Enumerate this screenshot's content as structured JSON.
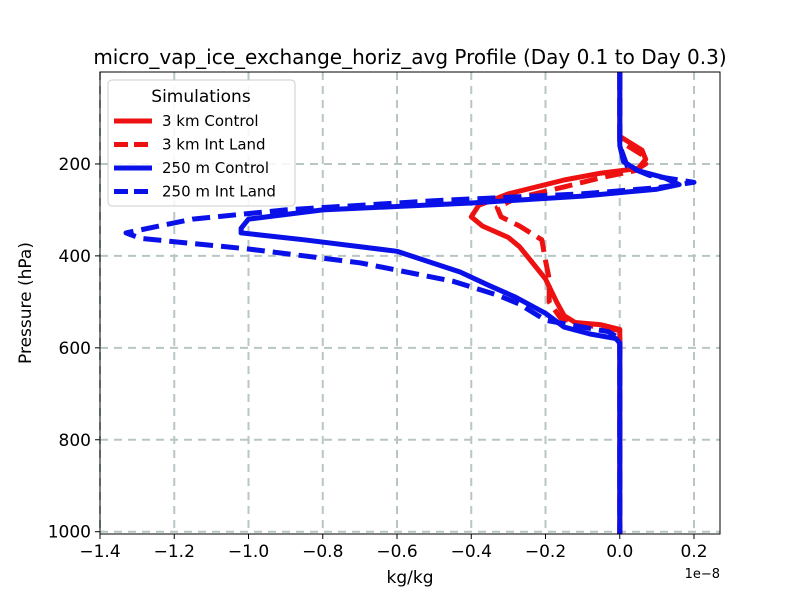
{
  "chart_data": {
    "type": "line",
    "title": "micro_vap_ice_exchange_horiz_avg Profile (Day 0.1 to Day 0.3)",
    "xlabel": "kg/kg",
    "ylabel": "Pressure (hPa)",
    "x_scale_label": "1e−8",
    "xlim": [
      -1.4,
      0.27
    ],
    "ylim": [
      1005,
      0
    ],
    "x_ticks": [
      -1.4,
      -1.2,
      -1.0,
      -0.8,
      -0.6,
      -0.4,
      -0.2,
      0.0,
      0.2
    ],
    "x_tick_labels": [
      "−1.4",
      "−1.2",
      "−1.0",
      "−0.8",
      "−0.6",
      "−0.4",
      "−0.2",
      "0.0",
      "0.2"
    ],
    "y_ticks": [
      200,
      400,
      600,
      800,
      1000
    ],
    "y_tick_labels": [
      "200",
      "400",
      "600",
      "800",
      "1000"
    ],
    "grid": true,
    "legend": {
      "title": "Simulations",
      "position": "top-left"
    },
    "series": [
      {
        "name": "3 km Control",
        "color": "#ee1111",
        "dash": "solid",
        "points": [
          [
            0.0,
            0
          ],
          [
            0.0,
            140
          ],
          [
            0.02,
            150
          ],
          [
            0.06,
            170
          ],
          [
            0.07,
            190
          ],
          [
            0.05,
            210
          ],
          [
            -0.05,
            220
          ],
          [
            -0.15,
            235
          ],
          [
            -0.3,
            265
          ],
          [
            -0.38,
            290
          ],
          [
            -0.4,
            315
          ],
          [
            -0.37,
            335
          ],
          [
            -0.3,
            360
          ],
          [
            -0.27,
            380
          ],
          [
            -0.24,
            410
          ],
          [
            -0.2,
            450
          ],
          [
            -0.17,
            500
          ],
          [
            -0.15,
            530
          ],
          [
            -0.12,
            545
          ],
          [
            -0.05,
            550
          ],
          [
            0.0,
            560
          ],
          [
            0.0,
            1005
          ]
        ]
      },
      {
        "name": "3 km Int Land",
        "color": "#ee1111",
        "dash": "dash",
        "points": [
          [
            0.0,
            0
          ],
          [
            0.0,
            150
          ],
          [
            0.03,
            165
          ],
          [
            0.06,
            180
          ],
          [
            0.07,
            200
          ],
          [
            0.04,
            215
          ],
          [
            -0.05,
            230
          ],
          [
            -0.15,
            250
          ],
          [
            -0.28,
            275
          ],
          [
            -0.33,
            295
          ],
          [
            -0.32,
            315
          ],
          [
            -0.27,
            335
          ],
          [
            -0.21,
            365
          ],
          [
            -0.2,
            410
          ],
          [
            -0.19,
            450
          ],
          [
            -0.19,
            500
          ],
          [
            -0.16,
            535
          ],
          [
            -0.1,
            550
          ],
          [
            -0.03,
            558
          ],
          [
            0.0,
            562
          ],
          [
            0.0,
            1005
          ]
        ]
      },
      {
        "name": "250 m Control",
        "color": "#0a10e8",
        "dash": "solid",
        "points": [
          [
            0.0,
            0
          ],
          [
            0.0,
            160
          ],
          [
            0.01,
            195
          ],
          [
            0.05,
            215
          ],
          [
            0.12,
            230
          ],
          [
            0.16,
            245
          ],
          [
            0.1,
            255
          ],
          [
            -0.1,
            270
          ],
          [
            -0.4,
            285
          ],
          [
            -0.8,
            300
          ],
          [
            -1.0,
            320
          ],
          [
            -1.02,
            340
          ],
          [
            -1.02,
            350
          ],
          [
            -0.85,
            365
          ],
          [
            -0.6,
            390
          ],
          [
            -0.43,
            435
          ],
          [
            -0.35,
            465
          ],
          [
            -0.28,
            490
          ],
          [
            -0.2,
            525
          ],
          [
            -0.15,
            555
          ],
          [
            -0.08,
            570
          ],
          [
            -0.01,
            580
          ],
          [
            0.0,
            590
          ],
          [
            0.0,
            1005
          ]
        ]
      },
      {
        "name": "250 m Int Land",
        "color": "#0a10e8",
        "dash": "dash",
        "points": [
          [
            0.0,
            0
          ],
          [
            0.0,
            160
          ],
          [
            0.02,
            205
          ],
          [
            0.08,
            225
          ],
          [
            0.2,
            240
          ],
          [
            0.1,
            252
          ],
          [
            -0.1,
            265
          ],
          [
            -0.5,
            280
          ],
          [
            -0.9,
            300
          ],
          [
            -1.15,
            320
          ],
          [
            -1.33,
            350
          ],
          [
            -1.29,
            362
          ],
          [
            -1.0,
            385
          ],
          [
            -0.7,
            415
          ],
          [
            -0.45,
            455
          ],
          [
            -0.33,
            485
          ],
          [
            -0.27,
            505
          ],
          [
            -0.22,
            530
          ],
          [
            -0.2,
            540
          ],
          [
            -0.1,
            555
          ],
          [
            -0.03,
            565
          ],
          [
            0.0,
            580
          ],
          [
            0.0,
            1005
          ]
        ]
      }
    ]
  }
}
